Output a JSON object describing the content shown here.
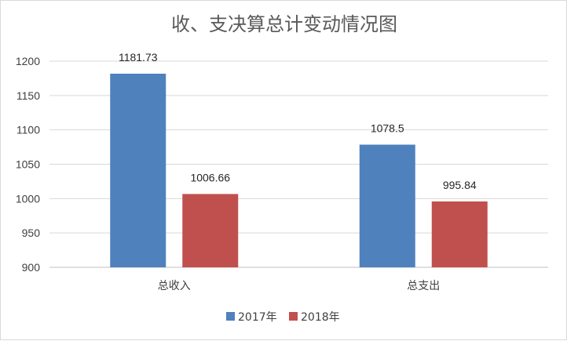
{
  "chart_data": {
    "type": "bar",
    "title": "收、支决算总计变动情况图",
    "categories": [
      "总收入",
      "总支出"
    ],
    "series": [
      {
        "name": "2017年",
        "values": [
          1181.73,
          1078.5
        ],
        "labels": [
          "1181.73",
          "1078.5"
        ],
        "color": "#4f81bd"
      },
      {
        "name": "2018年",
        "values": [
          1006.66,
          995.84
        ],
        "labels": [
          "1006.66",
          "995.84"
        ],
        "color": "#c0504d"
      }
    ],
    "ylim": [
      900,
      1200
    ],
    "yticks": [
      "900",
      "950",
      "1000",
      "1050",
      "1100",
      "1150",
      "1200"
    ],
    "grid": true,
    "legend_position": "bottom",
    "xlabel": "",
    "ylabel": ""
  }
}
